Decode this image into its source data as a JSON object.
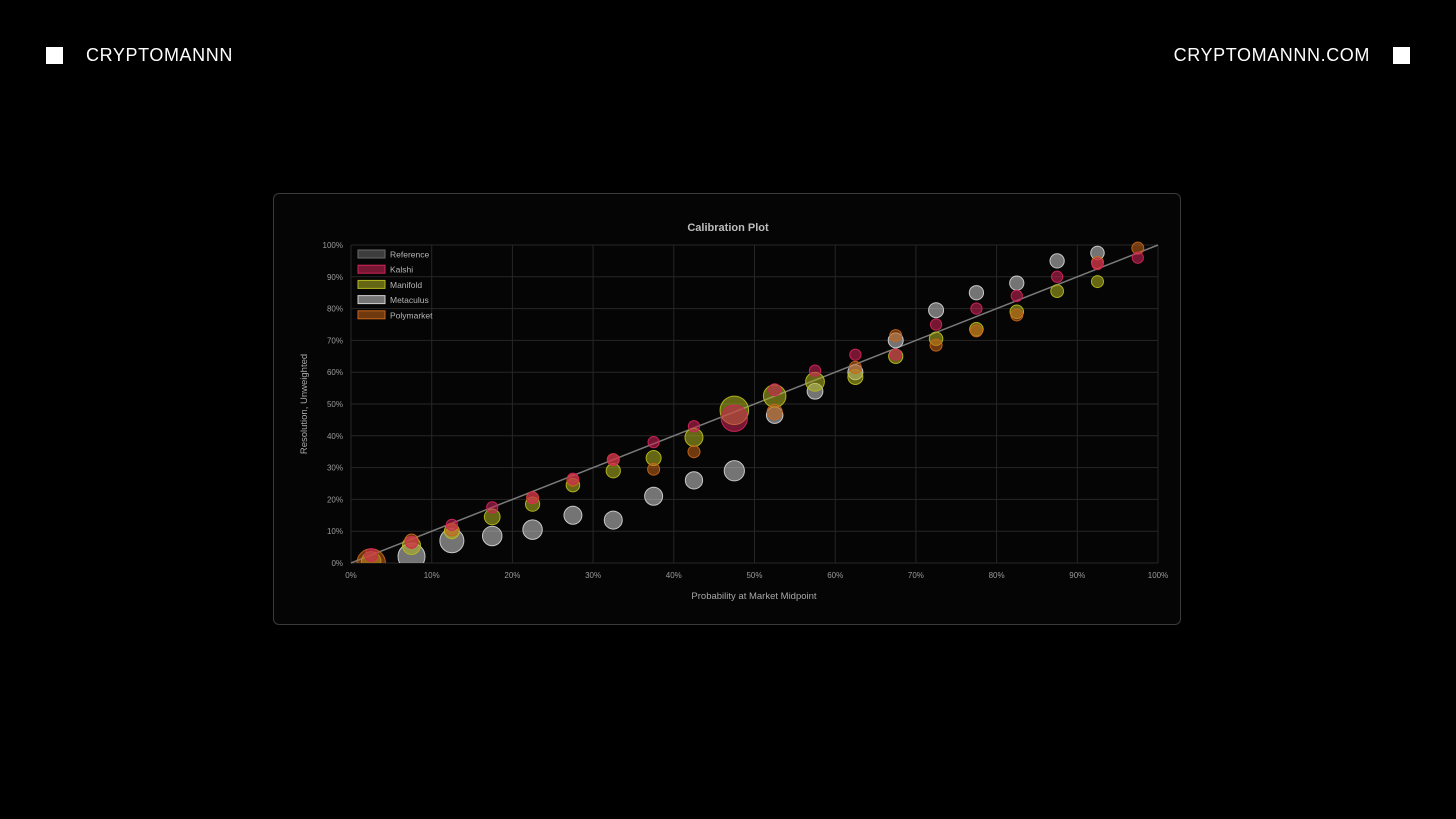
{
  "header": {
    "brand_left": "CRYPTOMANNN",
    "brand_right": "CRYPTOMANNN.COM"
  },
  "chart_data": {
    "type": "scatter",
    "title": "Calibration Plot",
    "xlabel": "Probability at Market Midpoint",
    "ylabel": "Resolution, Unweighted",
    "xlim": [
      0,
      100
    ],
    "ylim": [
      0,
      100
    ],
    "x_ticks": [
      "0%",
      "10%",
      "20%",
      "30%",
      "40%",
      "50%",
      "60%",
      "70%",
      "80%",
      "90%",
      "100%"
    ],
    "y_ticks": [
      "0%",
      "10%",
      "20%",
      "30%",
      "40%",
      "50%",
      "60%",
      "70%",
      "80%",
      "90%",
      "100%"
    ],
    "grid": true,
    "legend_position": "top-left",
    "reference": {
      "name": "Reference",
      "color": "#6b6b6b",
      "points": [
        [
          0,
          0
        ],
        [
          100,
          100
        ]
      ]
    },
    "series": [
      {
        "name": "Metaculus",
        "color": "#cfcfcf",
        "points": [
          {
            "x": 7.5,
            "y": 2,
            "size": 1.8
          },
          {
            "x": 12.5,
            "y": 7,
            "size": 1.6
          },
          {
            "x": 17.5,
            "y": 8.5,
            "size": 1.3
          },
          {
            "x": 22.5,
            "y": 10.5,
            "size": 1.3
          },
          {
            "x": 27.5,
            "y": 15,
            "size": 1.2
          },
          {
            "x": 32.5,
            "y": 13.5,
            "size": 1.2
          },
          {
            "x": 37.5,
            "y": 21,
            "size": 1.2
          },
          {
            "x": 42.5,
            "y": 26,
            "size": 1.15
          },
          {
            "x": 47.5,
            "y": 29,
            "size": 1.35
          },
          {
            "x": 52.5,
            "y": 46.5,
            "size": 1.1
          },
          {
            "x": 57.5,
            "y": 54,
            "size": 1.05
          },
          {
            "x": 62.5,
            "y": 60,
            "size": 1.0
          },
          {
            "x": 67.5,
            "y": 70,
            "size": 1.0
          },
          {
            "x": 72.5,
            "y": 79.5,
            "size": 1.0
          },
          {
            "x": 77.5,
            "y": 85,
            "size": 0.95
          },
          {
            "x": 82.5,
            "y": 88,
            "size": 0.95
          },
          {
            "x": 87.5,
            "y": 95,
            "size": 0.95
          },
          {
            "x": 92.5,
            "y": 97.5,
            "size": 0.9
          }
        ]
      },
      {
        "name": "Manifold",
        "color": "#b5b820",
        "points": [
          {
            "x": 2.5,
            "y": 0.5,
            "size": 1.3
          },
          {
            "x": 7.5,
            "y": 5.5,
            "size": 1.2
          },
          {
            "x": 12.5,
            "y": 10,
            "size": 1.0
          },
          {
            "x": 17.5,
            "y": 14.5,
            "size": 1.05
          },
          {
            "x": 22.5,
            "y": 18.5,
            "size": 0.95
          },
          {
            "x": 27.5,
            "y": 24.5,
            "size": 0.9
          },
          {
            "x": 32.5,
            "y": 29,
            "size": 0.95
          },
          {
            "x": 37.5,
            "y": 33,
            "size": 1.0
          },
          {
            "x": 42.5,
            "y": 39.5,
            "size": 1.2
          },
          {
            "x": 47.5,
            "y": 48,
            "size": 1.9
          },
          {
            "x": 52.5,
            "y": 52.5,
            "size": 1.5
          },
          {
            "x": 57.5,
            "y": 57,
            "size": 1.25
          },
          {
            "x": 62.5,
            "y": 58.5,
            "size": 1.0
          },
          {
            "x": 67.5,
            "y": 65,
            "size": 0.95
          },
          {
            "x": 72.5,
            "y": 70.5,
            "size": 0.9
          },
          {
            "x": 77.5,
            "y": 73.5,
            "size": 0.9
          },
          {
            "x": 82.5,
            "y": 79,
            "size": 0.9
          },
          {
            "x": 87.5,
            "y": 85.5,
            "size": 0.85
          },
          {
            "x": 92.5,
            "y": 88.5,
            "size": 0.8
          }
        ]
      },
      {
        "name": "Polymarket",
        "color": "#c7641a",
        "points": [
          {
            "x": 2.5,
            "y": 0,
            "size": 1.9
          },
          {
            "x": 7.5,
            "y": 7,
            "size": 0.9
          },
          {
            "x": 12.5,
            "y": 10.5,
            "size": 0.85
          },
          {
            "x": 22.5,
            "y": 20.5,
            "size": 0.8
          },
          {
            "x": 27.5,
            "y": 26,
            "size": 0.8
          },
          {
            "x": 32.5,
            "y": 32.5,
            "size": 0.8
          },
          {
            "x": 37.5,
            "y": 29.5,
            "size": 0.8
          },
          {
            "x": 42.5,
            "y": 35,
            "size": 0.8
          },
          {
            "x": 52.5,
            "y": 47.5,
            "size": 1.0
          },
          {
            "x": 62.5,
            "y": 61.5,
            "size": 0.8
          },
          {
            "x": 67.5,
            "y": 71.5,
            "size": 0.8
          },
          {
            "x": 72.5,
            "y": 68.5,
            "size": 0.8
          },
          {
            "x": 77.5,
            "y": 73,
            "size": 0.8
          },
          {
            "x": 82.5,
            "y": 78,
            "size": 0.8
          },
          {
            "x": 92.5,
            "y": 94.5,
            "size": 0.8
          },
          {
            "x": 97.5,
            "y": 99,
            "size": 0.8
          }
        ]
      },
      {
        "name": "Kalshi",
        "color": "#d1245a",
        "points": [
          {
            "x": 2.5,
            "y": 2.5,
            "size": 0.85
          },
          {
            "x": 7.5,
            "y": 6.5,
            "size": 0.8
          },
          {
            "x": 12.5,
            "y": 12,
            "size": 0.75
          },
          {
            "x": 17.5,
            "y": 17.5,
            "size": 0.75
          },
          {
            "x": 22.5,
            "y": 20.5,
            "size": 0.75
          },
          {
            "x": 27.5,
            "y": 26.5,
            "size": 0.75
          },
          {
            "x": 32.5,
            "y": 32.5,
            "size": 0.75
          },
          {
            "x": 37.5,
            "y": 38,
            "size": 0.75
          },
          {
            "x": 42.5,
            "y": 43,
            "size": 0.75
          },
          {
            "x": 47.5,
            "y": 45.5,
            "size": 1.75
          },
          {
            "x": 52.5,
            "y": 54.5,
            "size": 0.8
          },
          {
            "x": 57.5,
            "y": 60.5,
            "size": 0.75
          },
          {
            "x": 62.5,
            "y": 65.5,
            "size": 0.75
          },
          {
            "x": 67.5,
            "y": 65.5,
            "size": 0.75
          },
          {
            "x": 72.5,
            "y": 75,
            "size": 0.75
          },
          {
            "x": 77.5,
            "y": 80,
            "size": 0.75
          },
          {
            "x": 82.5,
            "y": 84,
            "size": 0.75
          },
          {
            "x": 87.5,
            "y": 90,
            "size": 0.75
          },
          {
            "x": 92.5,
            "y": 94,
            "size": 0.75
          },
          {
            "x": 97.5,
            "y": 96,
            "size": 0.75
          }
        ]
      }
    ],
    "legend": [
      "Reference",
      "Kalshi",
      "Manifold",
      "Metaculus",
      "Polymarket"
    ],
    "colors": {
      "Reference": "#6b6b6b",
      "Kalshi": "#d1245a",
      "Manifold": "#b5b820",
      "Metaculus": "#cfcfcf",
      "Polymarket": "#c7641a",
      "grid": "#262626",
      "background": "#000000"
    }
  }
}
